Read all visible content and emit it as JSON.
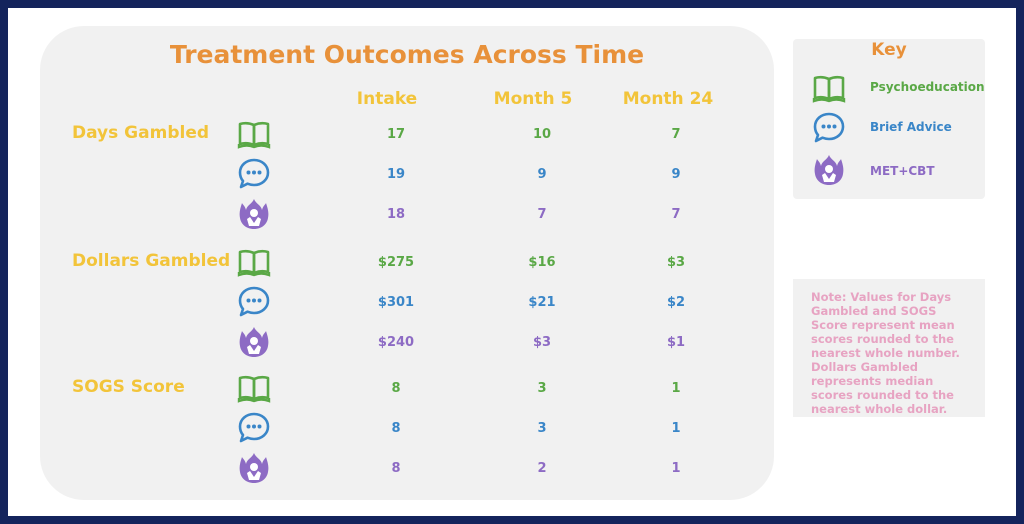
{
  "title": "Treatment Outcomes Across Time",
  "columns": [
    "Intake",
    "Month 5",
    "Month 24"
  ],
  "key": {
    "title": "Key",
    "items": [
      {
        "label": "Psychoeducation",
        "icon": "book-icon",
        "color": "#5aa846"
      },
      {
        "label": "Brief Advice",
        "icon": "speech-bubble-icon",
        "color": "#3a86c8"
      },
      {
        "label": "MET+CBT",
        "icon": "flame-person-icon",
        "color": "#8d6bc4"
      }
    ]
  },
  "note": "Note: Values for Days Gambled and SOGS Score represent mean scores rounded to the nearest whole number. Dollars Gambled represents median scores rounded to the nearest whole dollar.",
  "chart_data": {
    "type": "table",
    "title": "Treatment Outcomes Across Time",
    "categories": [
      "Intake",
      "Month 5",
      "Month 24"
    ],
    "series_groups": [
      {
        "metric": "Days Gambled",
        "rows": [
          {
            "name": "Psychoeducation",
            "values": [
              "17",
              "10",
              "7"
            ]
          },
          {
            "name": "Brief Advice",
            "values": [
              "19",
              "9",
              "9"
            ]
          },
          {
            "name": "MET+CBT",
            "values": [
              "18",
              "7",
              "7"
            ]
          }
        ]
      },
      {
        "metric": "Dollars Gambled",
        "rows": [
          {
            "name": "Psychoeducation",
            "values": [
              "$275",
              "$16",
              "$3"
            ]
          },
          {
            "name": "Brief Advice",
            "values": [
              "$301",
              "$21",
              "$2"
            ]
          },
          {
            "name": "MET+CBT",
            "values": [
              "$240",
              "$3",
              "$1"
            ]
          }
        ]
      },
      {
        "metric": "SOGS Score",
        "rows": [
          {
            "name": "Psychoeducation",
            "values": [
              "8",
              "3",
              "1"
            ]
          },
          {
            "name": "Brief Advice",
            "values": [
              "8",
              "3",
              "1"
            ]
          },
          {
            "name": "MET+CBT",
            "values": [
              "8",
              "2",
              "1"
            ]
          }
        ]
      }
    ]
  }
}
